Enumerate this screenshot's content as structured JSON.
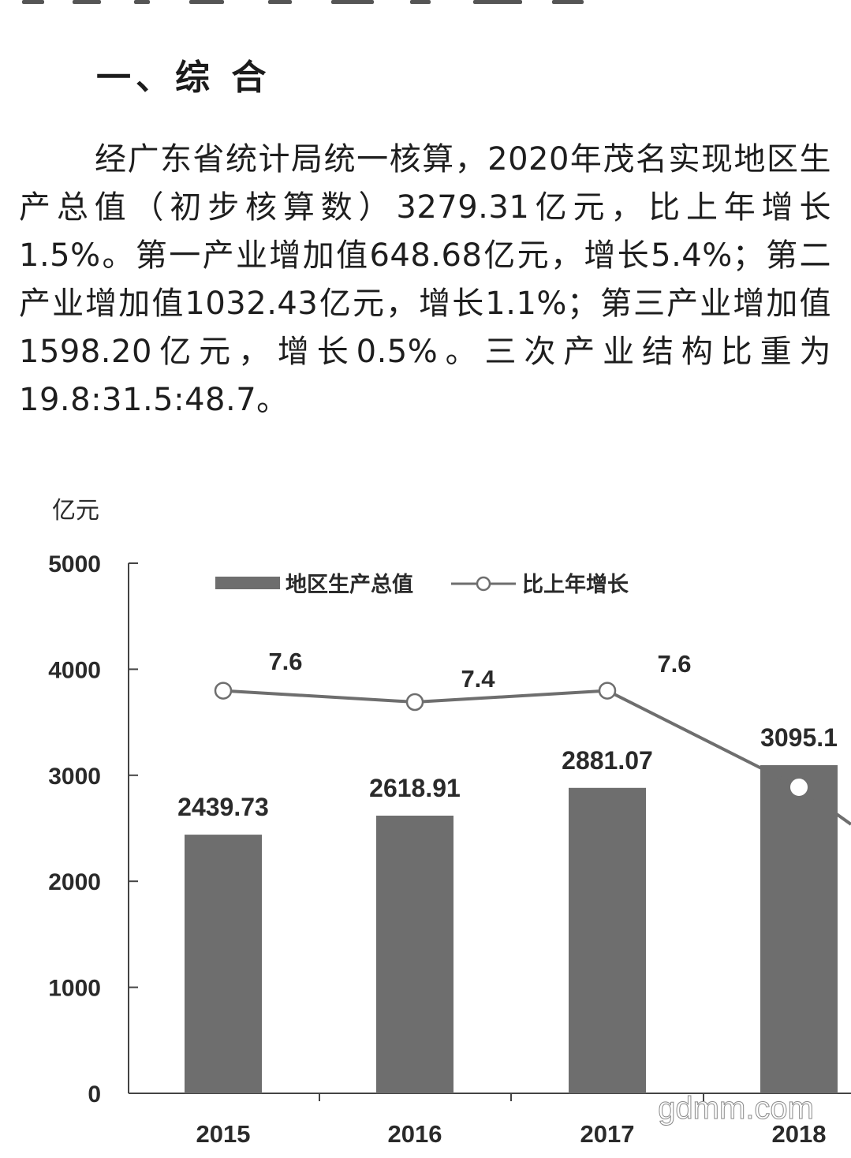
{
  "article": {
    "heading": "一、综 合",
    "paragraph": "经广东省统计局统一核算，2020年茂名实现地区生产总值（初步核算数）3279.31亿元，比上年增长1.5%。第一产业增加值648.68亿元，增长5.4%；第二产业增加值1032.43亿元，增长1.1%；第三产业增加值1598.20亿元，增长0.5%。三次产业结构比重为19.8:31.5:48.7。"
  },
  "chart_data": {
    "type": "bar",
    "ylabel": "亿元",
    "ylim": [
      0,
      5000
    ],
    "yticks": [
      0,
      1000,
      2000,
      3000,
      4000,
      5000
    ],
    "categories": [
      "2015",
      "2016",
      "2017",
      "2018"
    ],
    "series": [
      {
        "name": "地区生产总值",
        "type": "bar",
        "color": "#6e6e6e",
        "values": [
          2439.73,
          2618.91,
          2881.07,
          3095.1
        ],
        "labels": [
          "2439.73",
          "2618.91",
          "2881.07",
          "3095.1"
        ]
      },
      {
        "name": "比上年增长",
        "type": "line",
        "marker": "open-circle",
        "color": "#6e6e6e",
        "values": [
          7.6,
          7.4,
          7.6,
          null
        ],
        "labels": [
          "7.6",
          "7.4",
          "7.6",
          ""
        ]
      }
    ],
    "legend_position": "top",
    "grid": false
  },
  "watermark": "gdmm.com"
}
